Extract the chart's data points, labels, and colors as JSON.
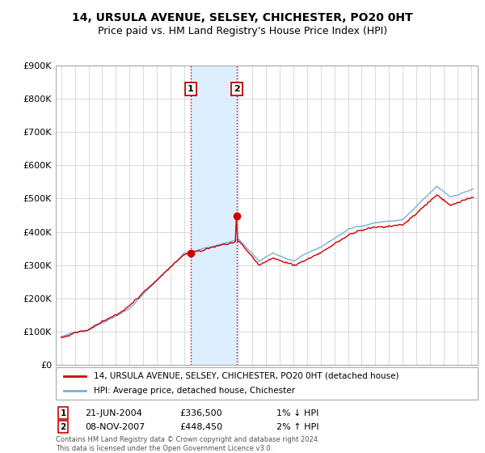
{
  "title_line1": "14, URSULA AVENUE, SELSEY, CHICHESTER, PO20 0HT",
  "title_line2": "Price paid vs. HM Land Registry's House Price Index (HPI)",
  "ylim": [
    0,
    900000
  ],
  "xlim_start": 1994.6,
  "xlim_end": 2025.5,
  "transaction1_date": "21-JUN-2004",
  "transaction1_price": 336500,
  "transaction1_hpi": "1% ↓ HPI",
  "transaction2_date": "08-NOV-2007",
  "transaction2_price": 448450,
  "transaction2_hpi": "2% ↑ HPI",
  "transaction1_x": 2004.47,
  "transaction2_x": 2007.86,
  "legend_line1": "14, URSULA AVENUE, SELSEY, CHICHESTER, PO20 0HT (detached house)",
  "legend_line2": "HPI: Average price, detached house, Chichester",
  "footer": "Contains HM Land Registry data © Crown copyright and database right 2024.\nThis data is licensed under the Open Government Licence v3.0.",
  "hpi_line_color": "#7bafd4",
  "price_line_color": "#cc0000",
  "shaded_color": "#ddeeff",
  "marker_color": "#cc0000",
  "background_color": "#ffffff",
  "grid_color": "#cccccc",
  "title_fontsize": 10,
  "subtitle_fontsize": 9
}
